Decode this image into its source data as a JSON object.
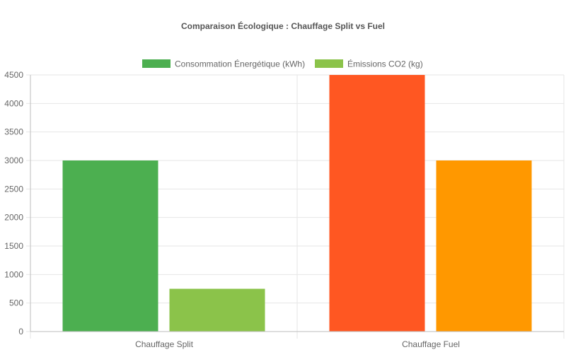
{
  "chart_data": {
    "type": "bar",
    "title": "Comparaison Écologique : Chauffage Split vs Fuel",
    "categories": [
      "Chauffage Split",
      "Chauffage Fuel"
    ],
    "series": [
      {
        "name": "Consommation Énergétique (kWh)",
        "values": [
          3000,
          4500
        ],
        "legend_color": "#4caf50",
        "bar_colors": [
          "#4caf50",
          "#ff5722"
        ]
      },
      {
        "name": "Émissions CO2 (kg)",
        "values": [
          750,
          3000
        ],
        "legend_color": "#8bc34a",
        "bar_colors": [
          "#8bc34a",
          "#ff9800"
        ]
      }
    ],
    "yticks": [
      0,
      500,
      1000,
      1500,
      2000,
      2500,
      3000,
      3500,
      4000,
      4500
    ],
    "ylim": [
      0,
      4500
    ],
    "grid": true,
    "legend_position": "top"
  },
  "colors": {
    "gridline": "#e6e6e6",
    "axis": "#bdbdbd",
    "tick_text": "#666666",
    "title_text": "#555555"
  }
}
